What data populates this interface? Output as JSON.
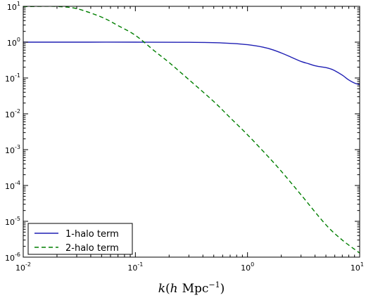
{
  "chart_data": {
    "type": "line",
    "xscale": "log",
    "yscale": "log",
    "xlim": [
      0.01,
      10
    ],
    "ylim": [
      1e-06,
      10
    ],
    "xlabel": {
      "italic": "k",
      "open": "(",
      "h": "h",
      "unit": "Mpc",
      "exponent": "−1",
      "close": ")"
    },
    "ylabel": "",
    "title": "",
    "grid": false,
    "legend_position": "lower-left",
    "x_ticks": [
      {
        "value": 0.01,
        "base": "10",
        "exp": "-2"
      },
      {
        "value": 0.1,
        "base": "10",
        "exp": "-1"
      },
      {
        "value": 1,
        "base": "10",
        "exp": "0"
      },
      {
        "value": 10,
        "base": "10",
        "exp": "1"
      }
    ],
    "y_ticks": [
      {
        "value": 1e-06,
        "base": "10",
        "exp": "-6"
      },
      {
        "value": 1e-05,
        "base": "10",
        "exp": "-5"
      },
      {
        "value": 0.0001,
        "base": "10",
        "exp": "-4"
      },
      {
        "value": 0.001,
        "base": "10",
        "exp": "-3"
      },
      {
        "value": 0.01,
        "base": "10",
        "exp": "-2"
      },
      {
        "value": 0.1,
        "base": "10",
        "exp": "-1"
      },
      {
        "value": 1,
        "base": "10",
        "exp": "0"
      },
      {
        "value": 10,
        "base": "10",
        "exp": "1"
      }
    ],
    "series": [
      {
        "name": "1-halo term",
        "color": "#1f1fb4",
        "dash": "solid",
        "x": [
          0.01,
          0.03,
          0.1,
          0.3,
          0.6,
          1.0,
          1.5,
          2.0,
          2.5,
          3.0,
          3.5,
          4.0,
          4.5,
          5.0,
          5.5,
          6.0,
          7.0,
          8.0,
          9.0,
          10.0
        ],
        "y": [
          1.0,
          1.0,
          1.0,
          0.99,
          0.95,
          0.85,
          0.68,
          0.5,
          0.37,
          0.29,
          0.25,
          0.22,
          0.205,
          0.195,
          0.18,
          0.16,
          0.12,
          0.088,
          0.072,
          0.065
        ]
      },
      {
        "name": "2-halo term",
        "color": "#007f00",
        "dash": "dashed",
        "x": [
          0.01,
          0.015,
          0.02,
          0.03,
          0.05,
          0.07,
          0.1,
          0.15,
          0.2,
          0.3,
          0.5,
          0.7,
          1.0,
          1.5,
          2.0,
          3.0,
          5.0,
          7.0,
          10.0
        ],
        "y": [
          9.8,
          10.0,
          9.9,
          8.6,
          5.0,
          2.9,
          1.55,
          0.55,
          0.27,
          0.09,
          0.022,
          0.0078,
          0.0026,
          0.00068,
          0.00025,
          5.5e-05,
          8e-06,
          3e-06,
          1.3e-06
        ]
      }
    ]
  }
}
